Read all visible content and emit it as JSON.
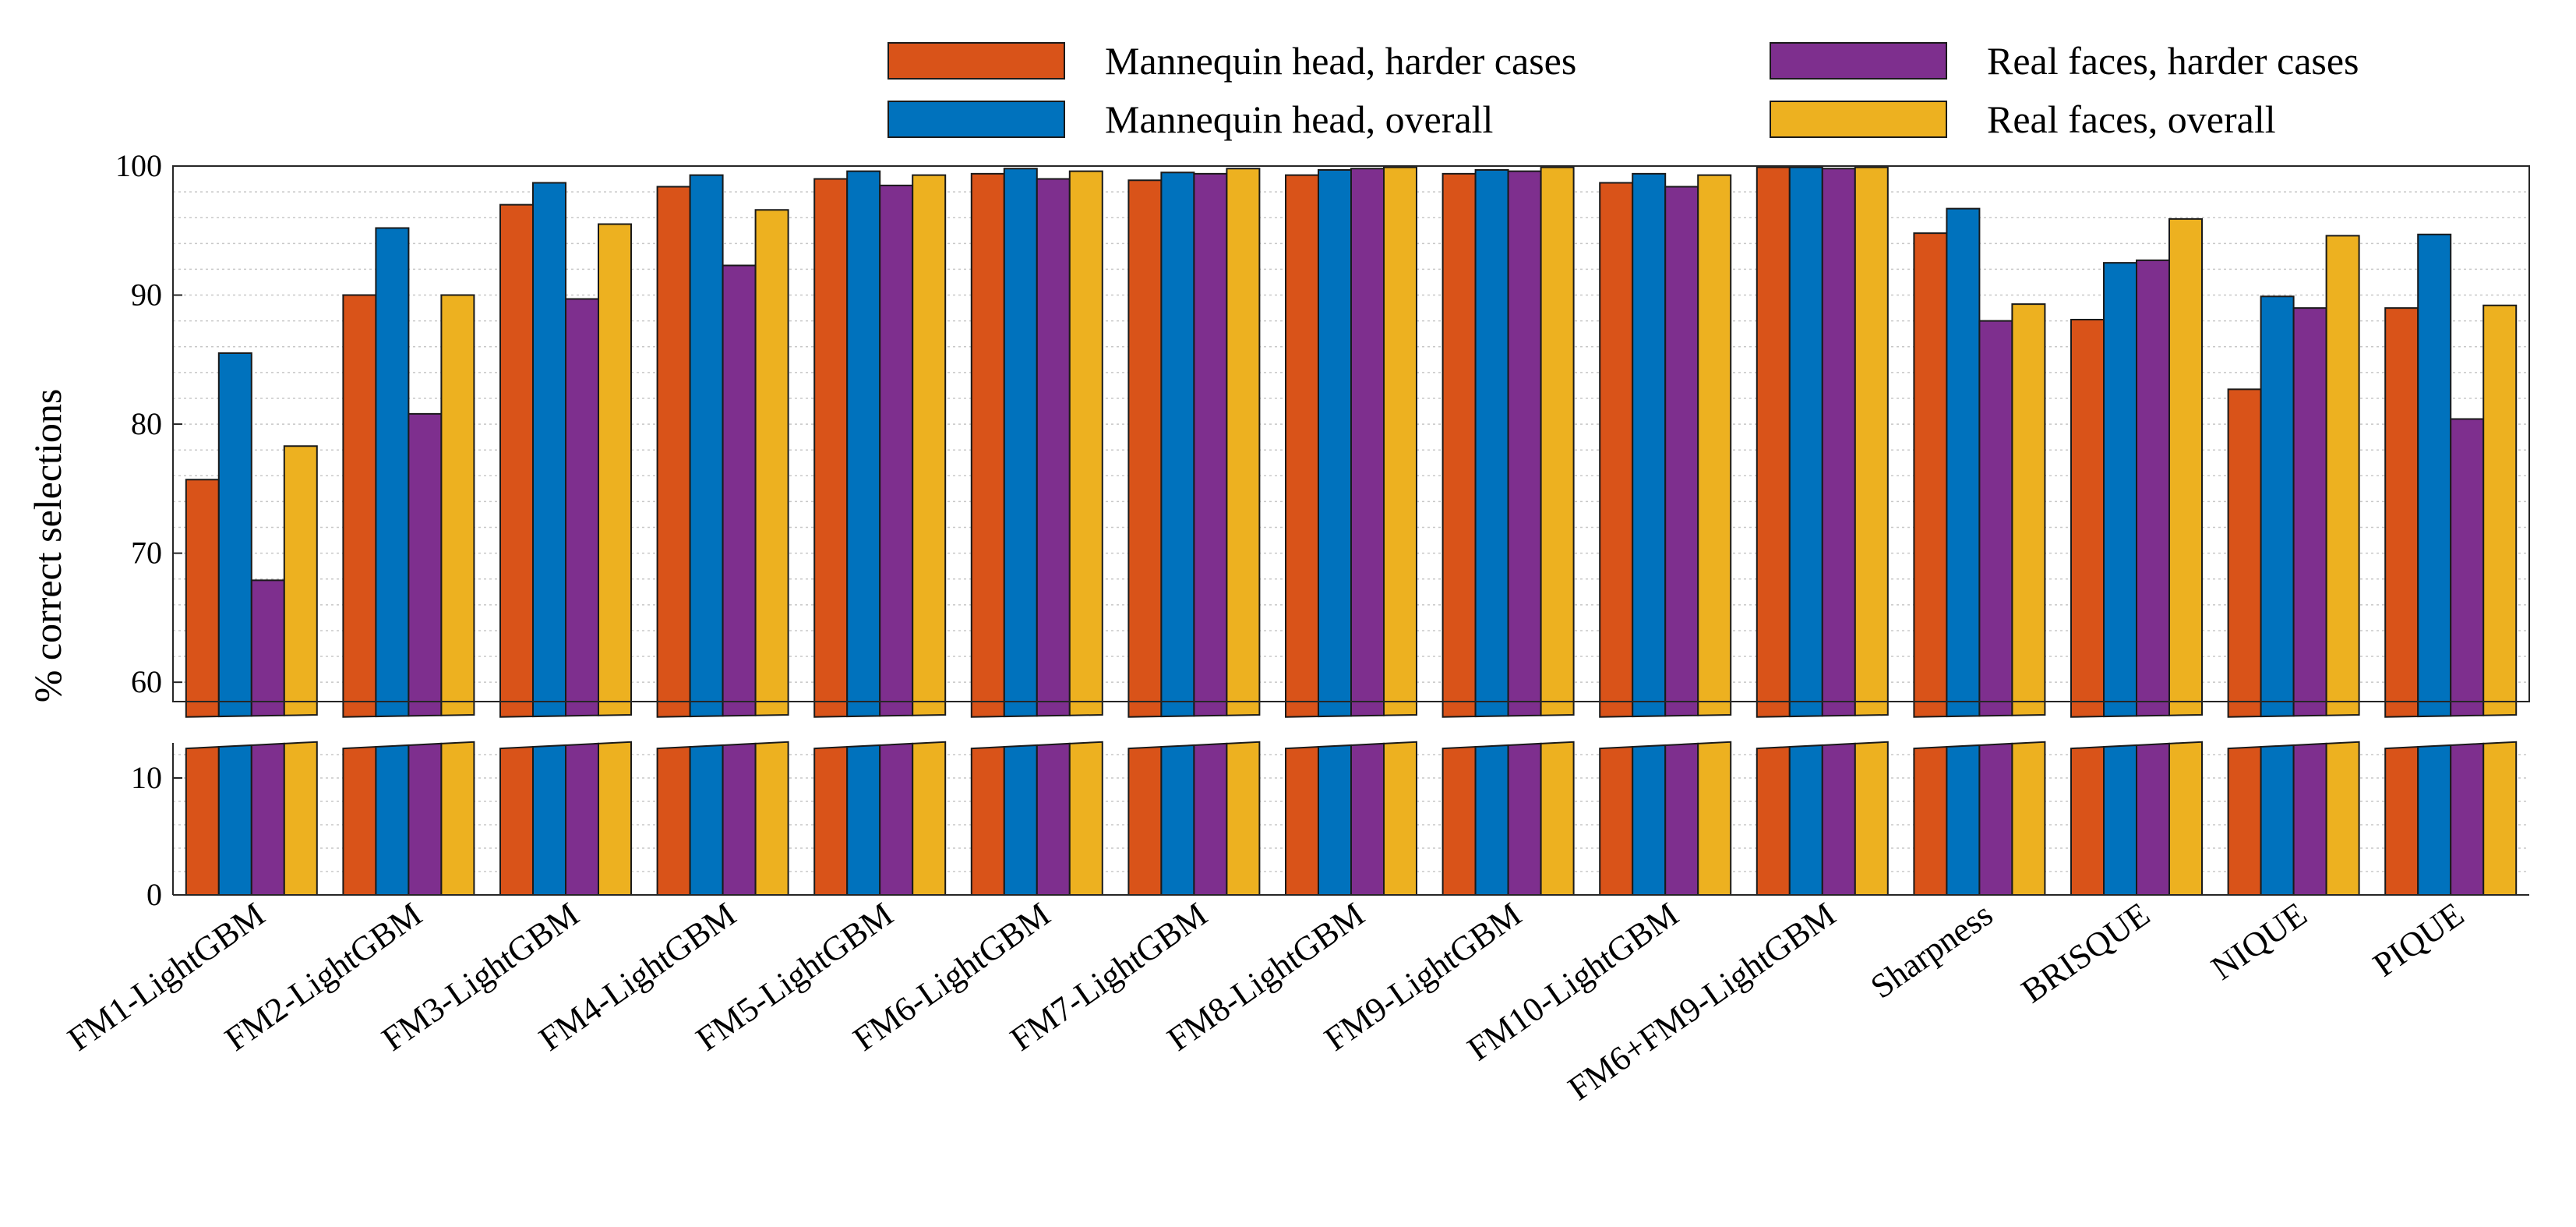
{
  "chart_data": {
    "type": "bar",
    "title": "",
    "xlabel": "",
    "ylabel": "% correct selections",
    "y_axis_break": {
      "lower_range": [
        0,
        13
      ],
      "upper_range": [
        58.5,
        100
      ]
    },
    "ylim": [
      0,
      100
    ],
    "yticks_upper": [
      60,
      70,
      80,
      90,
      100
    ],
    "yticks_lower": [
      0,
      10
    ],
    "grid": "horizontal dotted minor",
    "legend_position": "top-right, two columns above plot",
    "categories": [
      "FM1-LightGBM",
      "FM2-LightGBM",
      "FM3-LightGBM",
      "FM4-LightGBM",
      "FM5-LightGBM",
      "FM6-LightGBM",
      "FM7-LightGBM",
      "FM8-LightGBM",
      "FM9-LightGBM",
      "FM10-LightGBM",
      "FM6+FM9-LightGBM",
      "Sharpness",
      "BRISQUE",
      "NIQUE",
      "PIQUE"
    ],
    "series": [
      {
        "name": "Mannequin head, harder cases",
        "color": "#D95319",
        "values": [
          75.7,
          90.0,
          97.0,
          98.4,
          99.0,
          99.4,
          98.9,
          99.3,
          99.4,
          98.7,
          99.9,
          94.8,
          88.1,
          82.7,
          89.0
        ]
      },
      {
        "name": "Mannequin head, overall",
        "color": "#0072BD",
        "values": [
          85.5,
          95.2,
          98.7,
          99.3,
          99.6,
          99.8,
          99.5,
          99.7,
          99.7,
          99.4,
          99.9,
          96.7,
          92.5,
          89.9,
          94.7
        ]
      },
      {
        "name": "Real faces, harder cases",
        "color": "#7E2F8E",
        "values": [
          67.9,
          80.8,
          89.7,
          92.3,
          98.5,
          99.0,
          99.4,
          99.8,
          99.6,
          98.4,
          99.8,
          88.0,
          92.7,
          89.0,
          80.4
        ]
      },
      {
        "name": "Real faces, overall",
        "color": "#EDB120",
        "values": [
          78.3,
          90.0,
          95.5,
          96.6,
          99.3,
          99.6,
          99.8,
          99.9,
          99.9,
          99.3,
          99.9,
          89.3,
          95.9,
          94.6,
          89.2
        ]
      }
    ]
  }
}
